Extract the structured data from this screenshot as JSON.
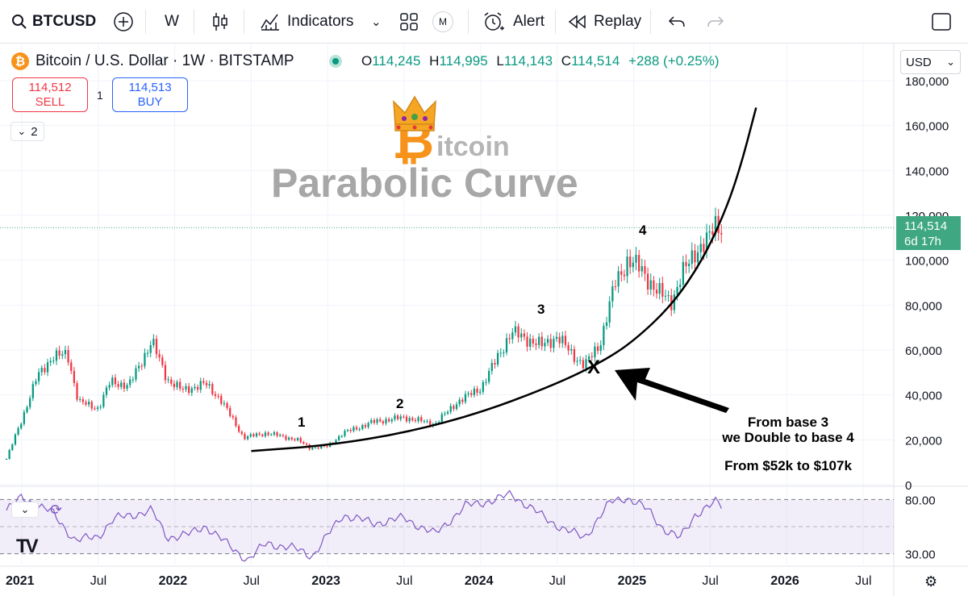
{
  "toolbar": {
    "symbol": "BTCUSD",
    "interval": "W",
    "indicators_label": "Indicators",
    "indicators_badge": "M",
    "alert_label": "Alert",
    "replay_label": "Replay"
  },
  "legend": {
    "title": "Bitcoin / U.S. Dollar · 1W · BITSTAMP",
    "logo": "₿",
    "open_label": "O",
    "open": "114,245",
    "high_label": "H",
    "high": "114,995",
    "low_label": "L",
    "low": "114,143",
    "close_label": "C",
    "close": "114,514",
    "change": "+288 (+0.25%)"
  },
  "trade": {
    "sell_price": "114,512",
    "sell_label": "SELL",
    "qty": "1",
    "buy_price": "114,513",
    "buy_label": "BUY"
  },
  "collapse_count": "2",
  "currency": "USD",
  "last_price": {
    "price": "114,514",
    "countdown": "6d 17h"
  },
  "watermark": {
    "b": "₿",
    "itcoin": "itcoin",
    "title": "Parabolic Curve"
  },
  "annotations": {
    "base1": "1",
    "base2": "2",
    "base3": "3",
    "base4": "4",
    "x": "X",
    "note_line1": "From base 3",
    "note_line2": "we Double to base 4",
    "note_line3": "From $52k to $107k"
  },
  "rsi": {
    "upper": "80.00",
    "lower": "30.00"
  },
  "tv_logo": "TV",
  "colors": {
    "up": "#089981",
    "down": "#f23645",
    "rsi": "#7e57c2",
    "last": "#3fa882"
  },
  "chart_data": {
    "type": "candlestick",
    "title": "Bitcoin / U.S. Dollar · 1W · BITSTAMP",
    "x_ticks": [
      "2021",
      "Jul",
      "2022",
      "Jul",
      "2023",
      "Jul",
      "2024",
      "Jul",
      "2025",
      "Jul",
      "2026",
      "Jul"
    ],
    "x_tick_dates": [
      2021.0,
      2021.5,
      2022.0,
      2022.5,
      2023.0,
      2023.5,
      2024.0,
      2024.5,
      2025.0,
      2025.5,
      2026.0,
      2026.5
    ],
    "y_ticks": [
      "0",
      "20,000",
      "40,000",
      "60,000",
      "80,000",
      "100,000",
      "120,000",
      "140,000",
      "160,000",
      "180,000"
    ],
    "y_tick_values": [
      0,
      20000,
      40000,
      60000,
      80000,
      100000,
      120000,
      140000,
      160000,
      180000
    ],
    "ylim": [
      0,
      180000
    ],
    "xlim": [
      2020.9,
      2026.7
    ],
    "price_path": [
      [
        2020.9,
        11500
      ],
      [
        2021.0,
        29000
      ],
      [
        2021.1,
        48000
      ],
      [
        2021.2,
        57000
      ],
      [
        2021.3,
        58000
      ],
      [
        2021.37,
        37000
      ],
      [
        2021.5,
        34000
      ],
      [
        2021.58,
        46000
      ],
      [
        2021.7,
        44000
      ],
      [
        2021.85,
        64000
      ],
      [
        2021.95,
        47000
      ],
      [
        2022.05,
        42000
      ],
      [
        2022.2,
        45000
      ],
      [
        2022.3,
        38000
      ],
      [
        2022.45,
        21000
      ],
      [
        2022.6,
        23000
      ],
      [
        2022.8,
        20000
      ],
      [
        2022.88,
        16500
      ],
      [
        2023.0,
        17000
      ],
      [
        2023.1,
        23000
      ],
      [
        2023.3,
        28000
      ],
      [
        2023.5,
        30000
      ],
      [
        2023.7,
        27000
      ],
      [
        2023.85,
        37000
      ],
      [
        2024.0,
        43000
      ],
      [
        2024.2,
        68000
      ],
      [
        2024.4,
        62000
      ],
      [
        2024.5,
        66000
      ],
      [
        2024.6,
        58000
      ],
      [
        2024.68,
        53000
      ],
      [
        2024.78,
        63000
      ],
      [
        2024.88,
        90000
      ],
      [
        2024.96,
        100000
      ],
      [
        2025.05,
        96000
      ],
      [
        2025.15,
        86000
      ],
      [
        2025.25,
        82000
      ],
      [
        2025.32,
        94000
      ],
      [
        2025.4,
        104000
      ],
      [
        2025.48,
        108000
      ],
      [
        2025.54,
        117000
      ],
      [
        2025.58,
        114514
      ]
    ],
    "parabolic_curve": [
      [
        2022.5,
        15000
      ],
      [
        2023.0,
        17500
      ],
      [
        2023.5,
        23000
      ],
      [
        2024.0,
        32000
      ],
      [
        2024.5,
        45000
      ],
      [
        2024.8,
        55000
      ],
      [
        2025.0,
        64000
      ],
      [
        2025.25,
        80000
      ],
      [
        2025.45,
        100000
      ],
      [
        2025.6,
        122000
      ],
      [
        2025.7,
        142000
      ],
      [
        2025.8,
        168000
      ]
    ],
    "last_price": 114514,
    "rsi": {
      "levels": [
        80,
        30
      ],
      "ylim": [
        20,
        90
      ],
      "values": [
        [
          2020.9,
          70
        ],
        [
          2021.0,
          82
        ],
        [
          2021.1,
          75
        ],
        [
          2021.2,
          68
        ],
        [
          2021.35,
          42
        ],
        [
          2021.5,
          46
        ],
        [
          2021.6,
          62
        ],
        [
          2021.85,
          70
        ],
        [
          2021.95,
          45
        ],
        [
          2022.1,
          48
        ],
        [
          2022.2,
          56
        ],
        [
          2022.35,
          38
        ],
        [
          2022.48,
          24
        ],
        [
          2022.6,
          40
        ],
        [
          2022.8,
          34
        ],
        [
          2022.9,
          28
        ],
        [
          2023.1,
          66
        ],
        [
          2023.3,
          58
        ],
        [
          2023.5,
          63
        ],
        [
          2023.7,
          48
        ],
        [
          2023.9,
          74
        ],
        [
          2024.1,
          80
        ],
        [
          2024.2,
          85
        ],
        [
          2024.4,
          65
        ],
        [
          2024.55,
          52
        ],
        [
          2024.68,
          45
        ],
        [
          2024.85,
          78
        ],
        [
          2024.95,
          82
        ],
        [
          2025.1,
          70
        ],
        [
          2025.2,
          52
        ],
        [
          2025.3,
          44
        ],
        [
          2025.4,
          66
        ],
        [
          2025.5,
          74
        ],
        [
          2025.54,
          78
        ],
        [
          2025.58,
          74
        ]
      ]
    }
  }
}
